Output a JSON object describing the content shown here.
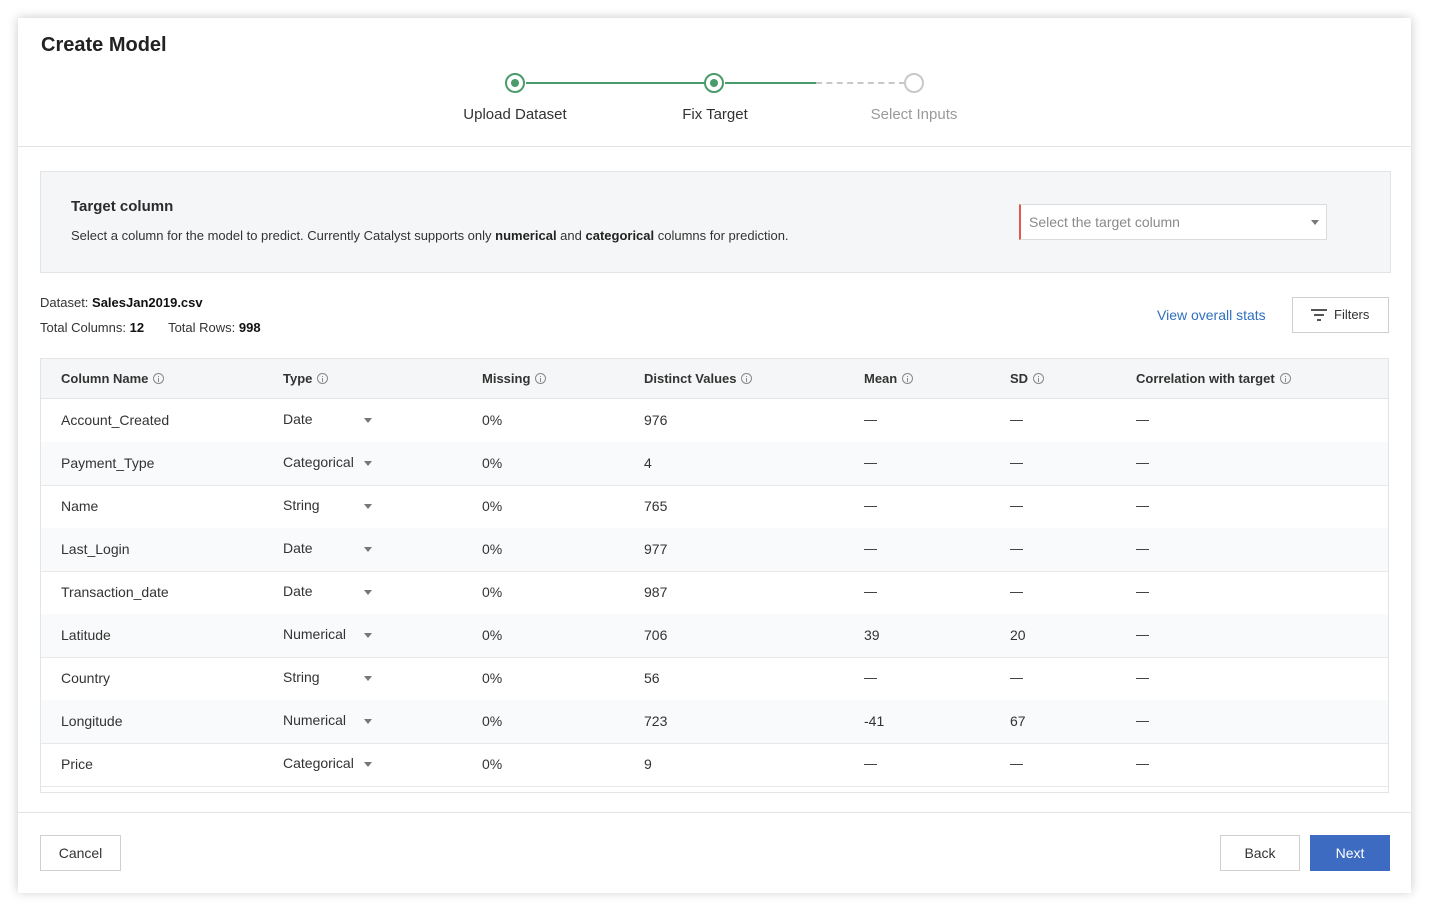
{
  "title": "Create Model",
  "steps": [
    {
      "label": "Upload Dataset",
      "state": "done"
    },
    {
      "label": "Fix Target",
      "state": "current"
    },
    {
      "label": "Select Inputs",
      "state": "todo"
    }
  ],
  "target": {
    "heading": "Target column",
    "desc_1": "Select a column for the model to predict. Currently Catalyst supports only ",
    "desc_bold_1": "numerical",
    "desc_2": " and ",
    "desc_bold_2": "categorical",
    "desc_3": " columns for prediction.",
    "placeholder": "Select the target column"
  },
  "dataset": {
    "label": "Dataset: ",
    "name": "SalesJan2019.csv",
    "columns_label": "Total Columns: ",
    "columns": "12",
    "rows_label": "Total Rows: ",
    "rows": "998"
  },
  "actions": {
    "view_stats": "View overall stats",
    "filters": "Filters"
  },
  "table": {
    "headers": [
      "Column Name",
      "Type",
      "Missing",
      "Distinct Values",
      "Mean",
      "SD",
      "Correlation with target"
    ],
    "rows": [
      {
        "name": "Account_Created",
        "type": "Date",
        "missing": "0%",
        "distinct": "976",
        "mean": null,
        "sd": null,
        "corr": null
      },
      {
        "name": "Payment_Type",
        "type": "Categorical",
        "missing": "0%",
        "distinct": "4",
        "mean": null,
        "sd": null,
        "corr": null
      },
      {
        "name": "Name",
        "type": "String",
        "missing": "0%",
        "distinct": "765",
        "mean": null,
        "sd": null,
        "corr": null
      },
      {
        "name": "Last_Login",
        "type": "Date",
        "missing": "0%",
        "distinct": "977",
        "mean": null,
        "sd": null,
        "corr": null
      },
      {
        "name": "Transaction_date",
        "type": "Date",
        "missing": "0%",
        "distinct": "987",
        "mean": null,
        "sd": null,
        "corr": null
      },
      {
        "name": "Latitude",
        "type": "Numerical",
        "missing": "0%",
        "distinct": "706",
        "mean": "39",
        "sd": "20",
        "corr": null
      },
      {
        "name": "Country",
        "type": "String",
        "missing": "0%",
        "distinct": "56",
        "mean": null,
        "sd": null,
        "corr": null
      },
      {
        "name": "Longitude",
        "type": "Numerical",
        "missing": "0%",
        "distinct": "723",
        "mean": "-41",
        "sd": "67",
        "corr": null
      },
      {
        "name": "Price",
        "type": "Categorical",
        "missing": "0%",
        "distinct": "9",
        "mean": null,
        "sd": null,
        "corr": null
      }
    ]
  },
  "footer": {
    "cancel": "Cancel",
    "back": "Back",
    "next": "Next"
  },
  "colors": {
    "accent_green": "#4a9b6a",
    "primary_blue": "#3d6bc1",
    "link_blue": "#2f6fbf",
    "required_red": "#e15a4f"
  }
}
